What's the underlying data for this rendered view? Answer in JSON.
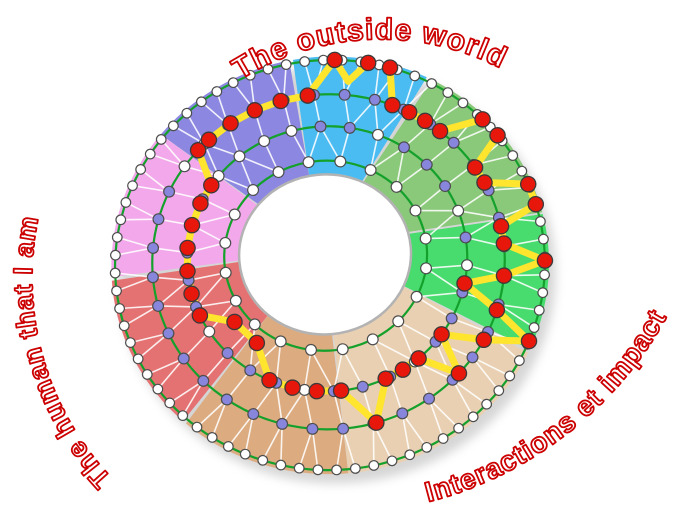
{
  "figure": {
    "labels": {
      "color": "#CC0000",
      "top": {
        "text": "The outside world"
      },
      "left": {
        "text": "The human that I am"
      },
      "bottom_right": {
        "text": "Interactions et impact"
      }
    },
    "chart_data": {
      "type": "radial-network-wheel",
      "description": "Donut wheel of 8 colored sectors, 4 concentric node rings joined by a white triangulated mesh, with a closed yellow highlight path passing through red nodes",
      "sectors": [
        {
          "name": "blue-top",
          "color": "#4BBCF2",
          "start_deg": 59,
          "end_deg": 96
        },
        {
          "name": "purple-top-left",
          "color": "#8C88E1",
          "start_deg": 96,
          "end_deg": 136
        },
        {
          "name": "pink-left",
          "color": "#F2A8EA",
          "start_deg": 136,
          "end_deg": 179
        },
        {
          "name": "red-bottom-left",
          "color": "#E57272",
          "start_deg": 179,
          "end_deg": 224
        },
        {
          "name": "tan-dark-bottom",
          "color": "#DCAB80",
          "start_deg": 224,
          "end_deg": 270
        },
        {
          "name": "tan-light-bottom",
          "color": "#E9D0B2",
          "start_deg": 270,
          "end_deg": 331
        },
        {
          "name": "green-bright-right",
          "color": "#48DB6E",
          "start_deg": 331,
          "end_deg": 369.5
        },
        {
          "name": "green-olive-right",
          "color": "#8AC87A",
          "start_deg": 369.5,
          "end_deg": 419
        }
      ],
      "rings": [
        {
          "name": "outer",
          "r": 1.0,
          "count": 72,
          "phase": 2,
          "node_color": "white"
        },
        {
          "name": "second",
          "r": 0.7,
          "count": 36,
          "phase": 0,
          "node_color": "purple",
          "white_arc": [
            92,
            140
          ]
        },
        {
          "name": "third",
          "r": 0.42,
          "count": 30,
          "phase": 4,
          "node_color": "mixed",
          "white_arc": [
            92,
            140
          ]
        },
        {
          "name": "inner",
          "r": 0.12,
          "count": 20,
          "phase": 5,
          "node_color": "white"
        }
      ],
      "highlight_path": {
        "line_color": "#FFE52E",
        "node_color": "#E8170B",
        "nodes": [
          [
            0.7,
            128
          ],
          [
            0.7,
            119
          ],
          [
            0.7,
            110
          ],
          [
            0.7,
            101
          ],
          [
            0.7,
            92
          ],
          [
            1,
            84
          ],
          [
            0.82,
            79.5,
            "dip"
          ],
          [
            1,
            75
          ],
          [
            1,
            69
          ],
          [
            0.7,
            64
          ],
          [
            0.7,
            58
          ],
          [
            0.7,
            52
          ],
          [
            0.7,
            46
          ],
          [
            1,
            40
          ],
          [
            1,
            34
          ],
          [
            0.7,
            29
          ],
          [
            0.7,
            23
          ],
          [
            1,
            18
          ],
          [
            1,
            12
          ],
          [
            0.7,
            7
          ],
          [
            0.7,
            1
          ],
          [
            1,
            -4
          ],
          [
            0.7,
            -10
          ],
          [
            0.42,
            -16
          ],
          [
            0.7,
            -22
          ],
          [
            1,
            -27
          ],
          [
            0.7,
            -33
          ],
          [
            0.42,
            -40
          ],
          [
            0.7,
            -47
          ],
          [
            0.42,
            -54
          ],
          [
            0.42,
            -62
          ],
          [
            0.42,
            -70
          ],
          [
            0.7,
            -79
          ],
          [
            0.42,
            -89
          ],
          [
            0.42,
            -99
          ],
          [
            0.42,
            -109
          ],
          [
            0.42,
            -119
          ],
          [
            0.22,
            -132
          ],
          [
            0.22,
            -148
          ],
          [
            0.42,
            -160
          ],
          [
            0.42,
            -170
          ],
          [
            0.42,
            -180
          ],
          [
            0.42,
            -190
          ],
          [
            0.42,
            -200
          ],
          [
            0.42,
            -210
          ],
          [
            0.42,
            -219
          ],
          [
            0.7,
            -227
          ]
        ]
      },
      "palette": {
        "ring_line_green": "#14A12B",
        "mesh_line_white": "#FFFFFF",
        "node_white_fill": "#FFFFFF",
        "node_purple_fill": "#8886DC",
        "node_stroke": "#4D4D4D",
        "hole_fill": "#FFFFFF",
        "hole_stroke": "#B3B3B3",
        "shadow": "#8A8A8A"
      }
    }
  }
}
